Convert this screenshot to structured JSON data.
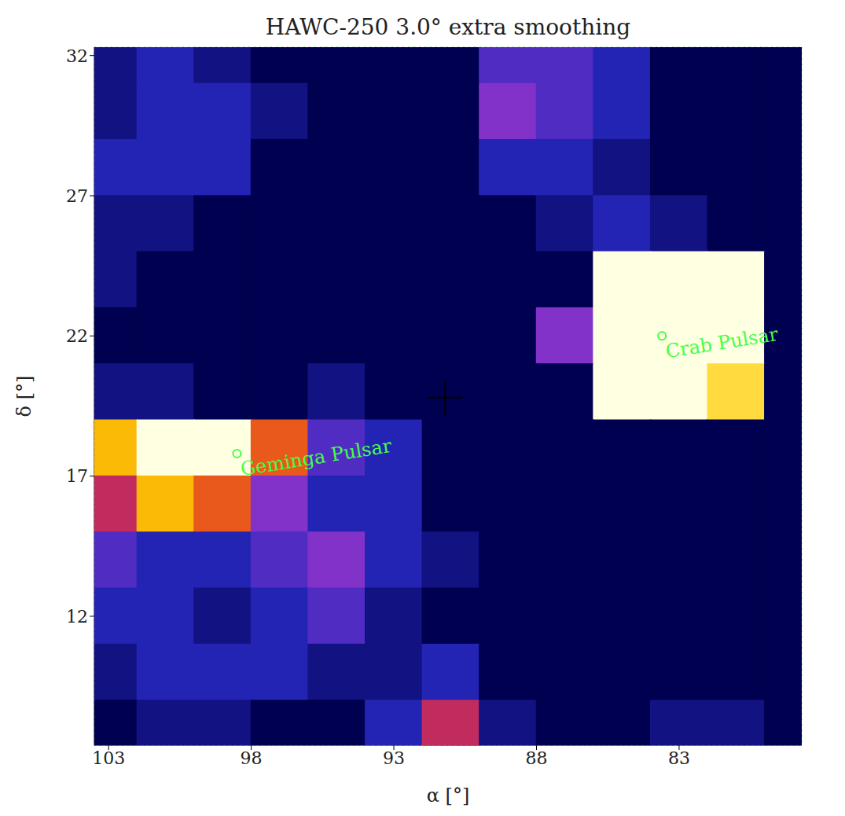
{
  "chart_data": {
    "type": "heatmap",
    "title": "HAWC-250  3.0° extra smoothing",
    "x_label": "α [°]",
    "y_label": "δ [°]",
    "x": [
      103,
      101,
      99,
      97,
      95,
      93,
      91,
      89,
      87,
      85,
      83,
      81,
      79
    ],
    "y": [
      32,
      30,
      28,
      26,
      24,
      22,
      20,
      18,
      16,
      14,
      12,
      10,
      8
    ],
    "cells": [
      [
        1,
        2,
        1,
        0,
        0,
        0,
        0,
        3,
        3,
        2,
        0,
        0,
        0
      ],
      [
        1,
        2,
        2,
        1,
        0,
        0,
        0,
        4,
        3,
        2,
        0,
        0,
        0
      ],
      [
        2,
        2,
        2,
        0,
        0,
        0,
        0,
        2,
        2,
        1,
        0,
        0,
        0
      ],
      [
        1,
        1,
        0,
        0,
        0,
        0,
        0,
        0,
        1,
        2,
        1,
        0,
        0
      ],
      [
        1,
        0,
        0,
        0,
        0,
        0,
        0,
        0,
        0,
        10,
        10,
        10,
        0
      ],
      [
        0,
        0,
        0,
        0,
        0,
        0,
        0,
        0,
        4,
        10,
        10,
        10,
        0
      ],
      [
        1,
        1,
        0,
        0,
        1,
        0,
        0,
        0,
        0,
        10,
        10,
        8,
        0
      ],
      [
        7,
        10,
        10,
        6,
        3,
        2,
        0,
        0,
        0,
        0,
        0,
        0,
        0
      ],
      [
        5,
        7,
        6,
        4,
        2,
        2,
        0,
        0,
        0,
        0,
        0,
        0,
        0
      ],
      [
        3,
        2,
        2,
        3,
        4,
        2,
        1,
        0,
        0,
        0,
        0,
        0,
        0
      ],
      [
        2,
        2,
        1,
        2,
        3,
        1,
        0,
        0,
        0,
        0,
        0,
        0,
        0
      ],
      [
        1,
        2,
        2,
        2,
        1,
        1,
        2,
        0,
        0,
        0,
        0,
        0,
        0
      ],
      [
        0,
        1,
        1,
        0,
        0,
        2,
        5,
        1,
        0,
        0,
        1,
        1,
        0
      ]
    ],
    "xlim": [
      103.5,
      78.7
    ],
    "ylim": [
      7.4,
      32.3
    ],
    "xticks": [
      103,
      98,
      93,
      88,
      83
    ],
    "yticks": [
      12,
      17,
      22,
      27,
      32
    ],
    "grid": true,
    "annotations": [
      {
        "text": "Crab Pulsar",
        "x": 83.6,
        "y": 22.0,
        "color": "#44ff44"
      },
      {
        "text": "Geminga Pulsar",
        "x": 98.5,
        "y": 17.8,
        "color": "#44ff44"
      }
    ],
    "center_marker": {
      "x": 91.2,
      "y": 19.8,
      "marker": "cross"
    }
  }
}
